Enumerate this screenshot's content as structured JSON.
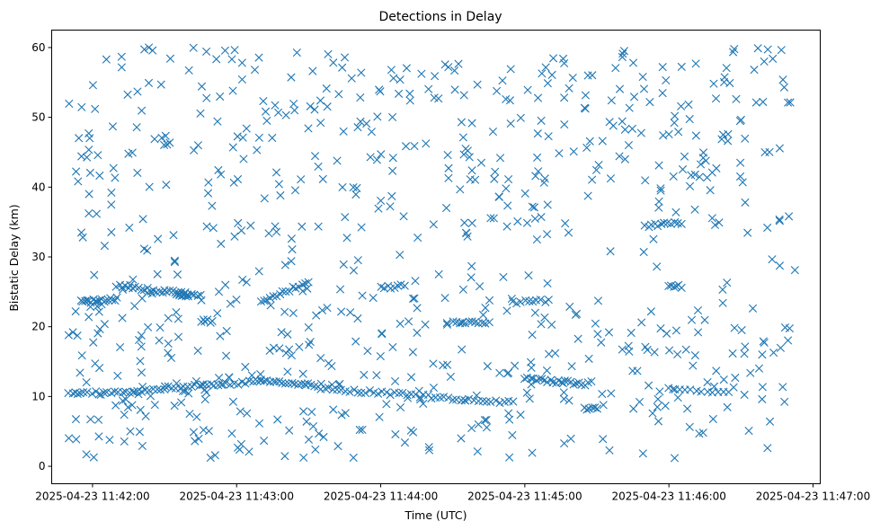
{
  "chart_data": {
    "type": "scatter",
    "title": "Detections in Delay",
    "xlabel": "Time (UTC)",
    "ylabel": "Bistatic Delay (km)",
    "marker": "x",
    "color": "#1f77b4",
    "grid": false,
    "x_range": [
      "2025-04-23 11:41:43",
      "2025-04-23 11:47:03"
    ],
    "y_range": [
      -2.5,
      62.5
    ],
    "x_ticks": [
      "2025-04-23 11:42:00",
      "2025-04-23 11:43:00",
      "2025-04-23 11:44:00",
      "2025-04-23 11:45:00",
      "2025-04-23 11:46:00",
      "2025-04-23 11:47:00"
    ],
    "y_ticks": [
      0,
      10,
      20,
      30,
      40,
      50,
      60
    ],
    "start": "2025-04-23 11:41:50",
    "end": "2025-04-23 11:46:53",
    "bands": [
      {
        "t0": "2025-04-23 11:41:50",
        "t1": "2025-04-23 11:42:30",
        "y0": 10.3,
        "y1": 11.0,
        "n": 26
      },
      {
        "t0": "2025-04-23 11:42:30",
        "t1": "2025-04-23 11:43:10",
        "y0": 11.2,
        "y1": 12.1,
        "n": 26
      },
      {
        "t0": "2025-04-23 11:43:10",
        "t1": "2025-04-23 11:43:35",
        "y0": 12.2,
        "y1": 11.6,
        "n": 20
      },
      {
        "t0": "2025-04-23 11:43:35",
        "t1": "2025-04-23 11:44:35",
        "y0": 11.2,
        "y1": 9.6,
        "n": 36
      },
      {
        "t0": "2025-04-23 11:44:35",
        "t1": "2025-04-23 11:44:55",
        "y0": 9.5,
        "y1": 9.2,
        "n": 12
      },
      {
        "t0": "2025-04-23 11:45:00",
        "t1": "2025-04-23 11:45:25",
        "y0": 12.5,
        "y1": 11.8,
        "n": 22
      },
      {
        "t0": "2025-04-23 11:45:25",
        "t1": "2025-04-23 11:45:30",
        "y0": 8.4,
        "y1": 8.2,
        "n": 6
      },
      {
        "t0": "2025-04-23 11:46:00",
        "t1": "2025-04-23 11:46:25",
        "y0": 11.0,
        "y1": 10.4,
        "n": 12
      },
      {
        "t0": "2025-04-23 11:41:55",
        "t1": "2025-04-23 11:42:10",
        "y0": 23.5,
        "y1": 24.0,
        "n": 18
      },
      {
        "t0": "2025-04-23 11:42:10",
        "t1": "2025-04-23 11:42:45",
        "y0": 25.8,
        "y1": 24.5,
        "n": 28
      },
      {
        "t0": "2025-04-23 11:43:10",
        "t1": "2025-04-23 11:43:30",
        "y0": 23.5,
        "y1": 26.5,
        "n": 16
      },
      {
        "t0": "2025-04-23 11:44:00",
        "t1": "2025-04-23 11:44:10",
        "y0": 25.5,
        "y1": 26.0,
        "n": 8
      },
      {
        "t0": "2025-04-23 11:44:30",
        "t1": "2025-04-23 11:44:45",
        "y0": 20.8,
        "y1": 20.5,
        "n": 12
      },
      {
        "t0": "2025-04-23 11:44:55",
        "t1": "2025-04-23 11:45:10",
        "y0": 23.5,
        "y1": 23.8,
        "n": 10
      },
      {
        "t0": "2025-04-23 11:45:50",
        "t1": "2025-04-23 11:46:05",
        "y0": 34.5,
        "y1": 34.8,
        "n": 12
      },
      {
        "t0": "2025-04-23 11:46:00",
        "t1": "2025-04-23 11:46:05",
        "y0": 25.8,
        "y1": 25.8,
        "n": 6
      },
      {
        "t0": "2025-04-23 11:42:45",
        "t1": "2025-04-23 11:42:50",
        "y0": 20.8,
        "y1": 20.8,
        "n": 6
      },
      {
        "t0": "2025-04-23 11:42:35",
        "t1": "2025-04-23 11:42:40",
        "y0": 24.8,
        "y1": 24.5,
        "n": 10
      }
    ],
    "scatter_points": 760,
    "scatter_seed": 20250423
  }
}
